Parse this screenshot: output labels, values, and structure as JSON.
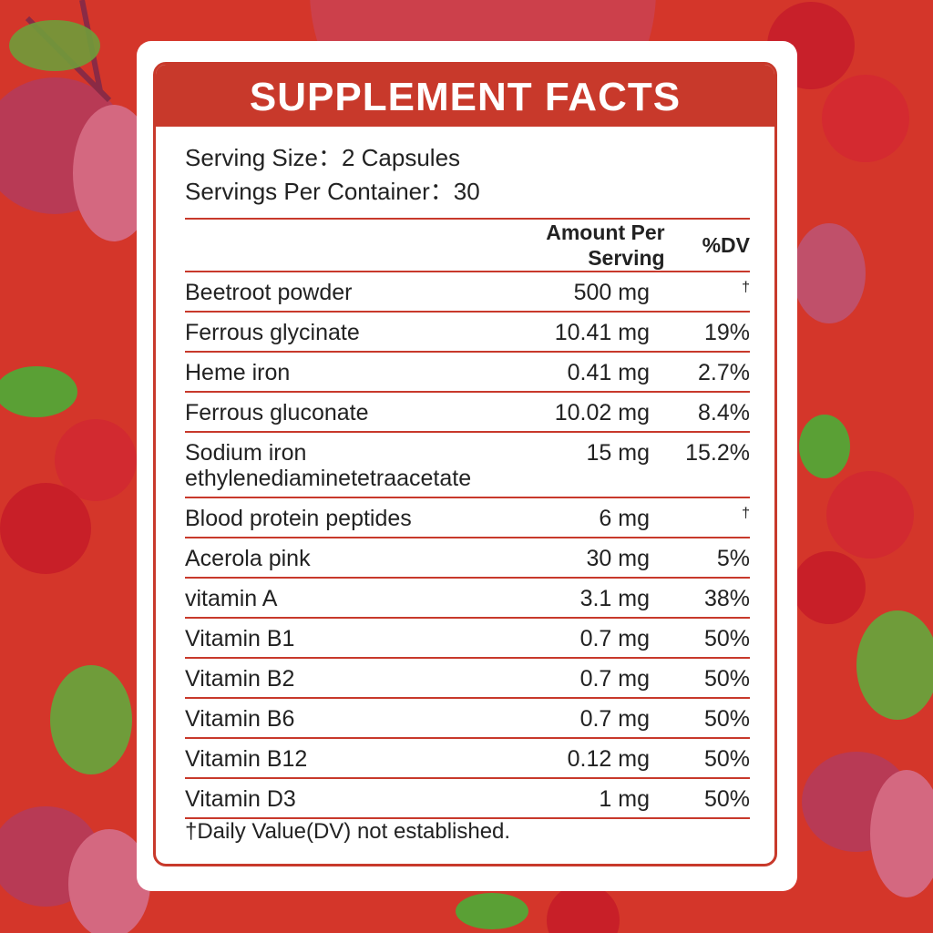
{
  "header": {
    "title": "SUPPLEMENT FACTS"
  },
  "serving": {
    "size": "Serving Size：2 Capsules",
    "per_container": "Servings Per Container：30"
  },
  "table": {
    "columns": [
      "Amount Per Serving",
      "%DV"
    ],
    "rows": [
      [
        "Beetroot powder",
        "500 mg",
        "†"
      ],
      [
        "Ferrous glycinate",
        "10.41 mg",
        "19%"
      ],
      [
        "Heme iron",
        "0.41 mg",
        "2.7%"
      ],
      [
        "Ferrous gluconate",
        "10.02 mg",
        "8.4%"
      ],
      [
        "Sodium iron ethylenediaminetetraacetate",
        "15 mg",
        "15.2%"
      ],
      [
        "Blood protein peptides",
        "6 mg",
        "†"
      ],
      [
        "Acerola pink",
        "30 mg",
        "5%"
      ],
      [
        "vitamin A",
        "3.1 mg",
        "38%"
      ],
      [
        "Vitamin B1",
        "0.7 mg",
        "50%"
      ],
      [
        "Vitamin B2",
        "0.7 mg",
        "50%"
      ],
      [
        "Vitamin B6",
        "0.7 mg",
        "50%"
      ],
      [
        "Vitamin B12",
        "0.12 mg",
        "50%"
      ],
      [
        "Vitamin D3",
        "1 mg",
        "50%"
      ]
    ]
  },
  "footnote": "†Daily Value(DV) not established."
}
